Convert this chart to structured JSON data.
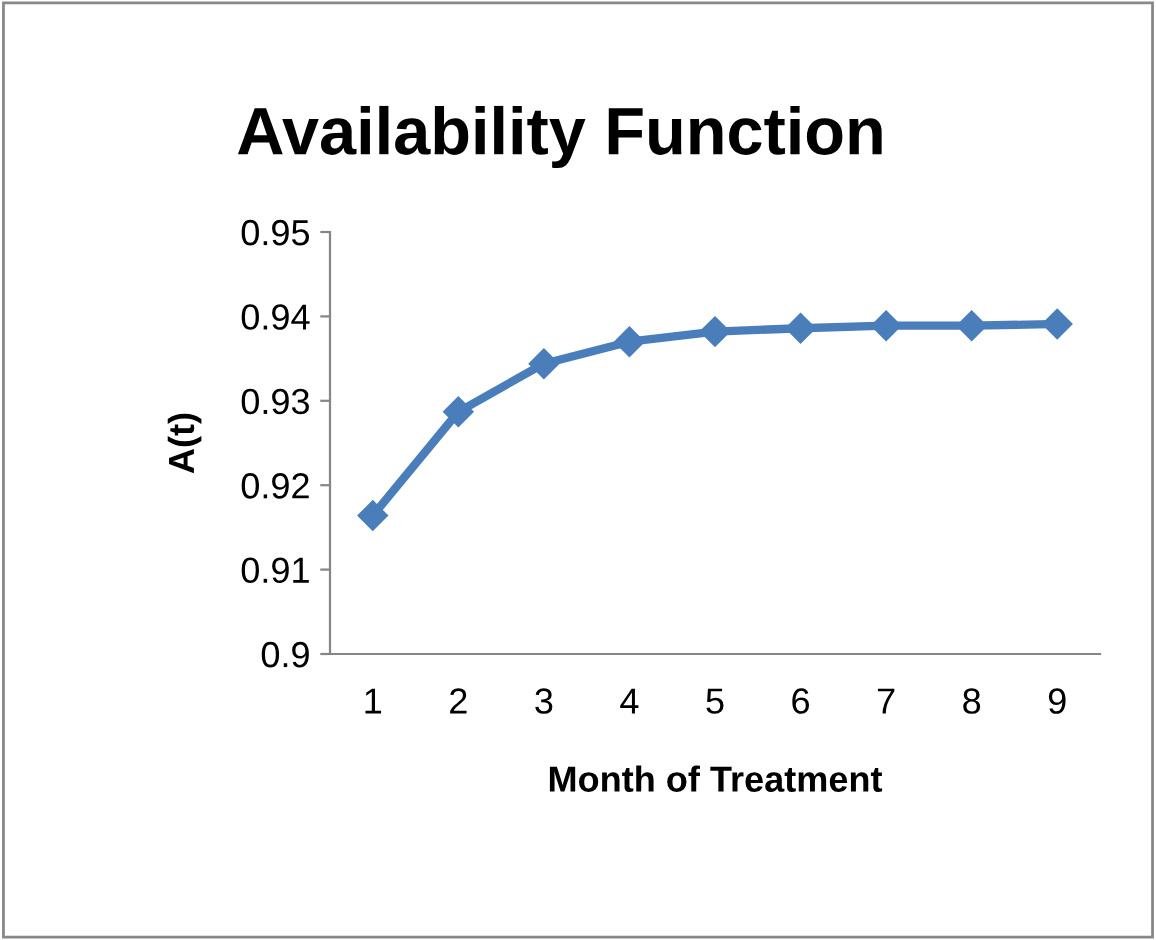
{
  "chart_data": {
    "type": "line",
    "title": "Availability Function",
    "xlabel": "Month of Treatment",
    "ylabel": "A(t)",
    "categories": [
      "1",
      "2",
      "3",
      "4",
      "5",
      "6",
      "7",
      "8",
      "9"
    ],
    "series": [
      {
        "color": "#4a7ebb",
        "values": [
          0.9164,
          0.9287,
          0.9344,
          0.937,
          0.9382,
          0.9386,
          0.9389,
          0.9389,
          0.9391
        ]
      }
    ],
    "ylim": [
      0.9,
      0.95
    ],
    "yticks": [
      0.9,
      0.91,
      0.92,
      0.93,
      0.94,
      0.95
    ],
    "grid": false,
    "legend": false,
    "marker": "diamond",
    "line_style": "solid"
  }
}
